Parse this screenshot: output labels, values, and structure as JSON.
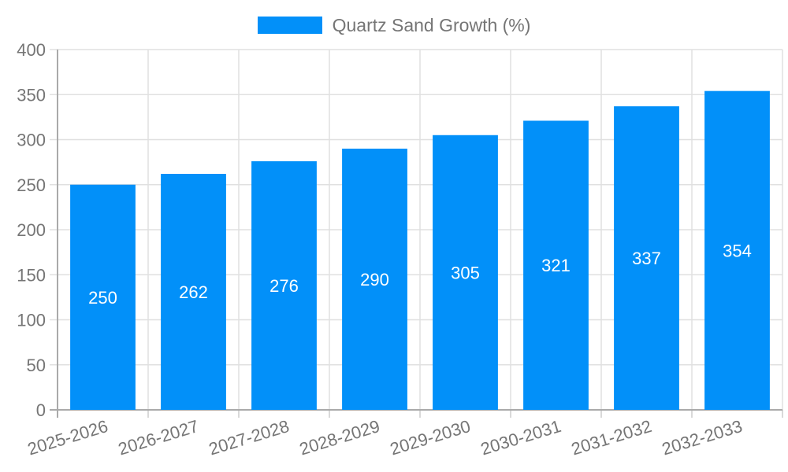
{
  "chart_data": {
    "type": "bar",
    "title": "Quartz Sand Growth (%)",
    "categories": [
      "2025-2026",
      "2026-2027",
      "2027-2028",
      "2028-2029",
      "2029-2030",
      "2030-2031",
      "2031-2032",
      "2032-2033"
    ],
    "values": [
      250,
      262,
      276,
      290,
      305,
      321,
      337,
      354
    ],
    "series": [
      {
        "name": "Quartz Sand Growth (%)",
        "values": [
          250,
          262,
          276,
          290,
          305,
          321,
          337,
          354
        ]
      }
    ],
    "xlabel": "",
    "ylabel": "",
    "ylim": [
      0,
      400
    ],
    "yticks": [
      0,
      50,
      100,
      150,
      200,
      250,
      300,
      350,
      400
    ],
    "grid": true,
    "legend_position": "top-center",
    "value_labels": "white, centered vertically inside each bar",
    "x_label_rotation_deg": -17
  },
  "colors": {
    "accent": "#0290f9",
    "grid": "#e0e0e0",
    "axis": "#aaaaaa",
    "tick": "#cccccc",
    "text": "#757575",
    "value_label": "#ffffff",
    "background": "#ffffff"
  }
}
